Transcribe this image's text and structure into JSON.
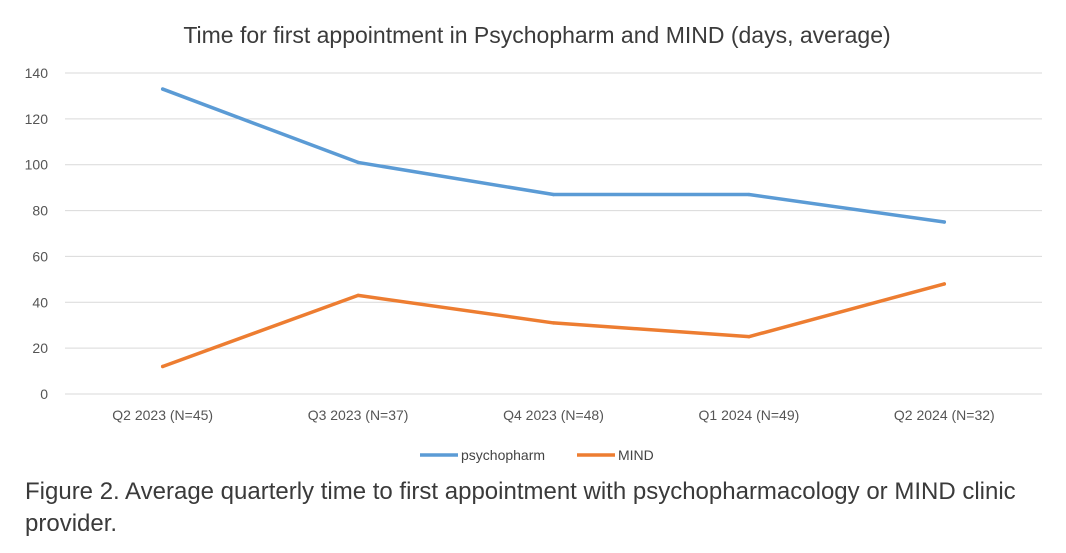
{
  "caption": "Figure 2. Average quarterly time to first appointment with psychopharmacology or MIND clinic provider.",
  "chart_data": {
    "type": "line",
    "title": "Time for first appointment in Psychopharm and MIND (days, average)",
    "xlabel": "",
    "ylabel": "",
    "categories": [
      "Q2 2023 (N=45)",
      "Q3 2023 (N=37)",
      "Q4 2023 (N=48)",
      "Q1 2024 (N=49)",
      "Q2 2024 (N=32)"
    ],
    "ylim": [
      0,
      140
    ],
    "yticks": [
      "0",
      "20",
      "40",
      "60",
      "80",
      "100",
      "120",
      "140"
    ],
    "grid": true,
    "legend": "bottom",
    "series": [
      {
        "name": "psychopharm",
        "color": "#5b9bd5",
        "values": [
          133,
          101,
          87,
          87,
          75
        ]
      },
      {
        "name": "MIND",
        "color": "#ed7d31",
        "values": [
          12,
          43,
          31,
          25,
          48
        ]
      }
    ]
  }
}
